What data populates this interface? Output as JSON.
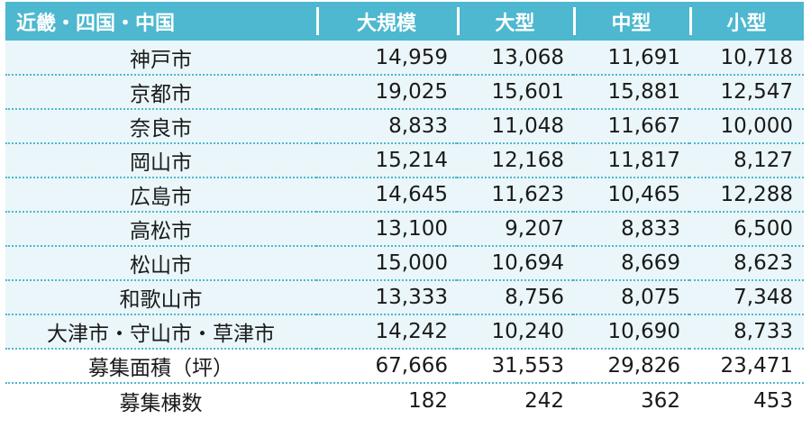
{
  "table": {
    "headers": [
      "近畿・四国・中国",
      "大規模",
      "大型",
      "中型",
      "小型"
    ],
    "rows": [
      {
        "name": "神戸市",
        "values": [
          "14,959",
          "13,068",
          "11,691",
          "10,718"
        ]
      },
      {
        "name": "京都市",
        "values": [
          "19,025",
          "15,601",
          "15,881",
          "12,547"
        ]
      },
      {
        "name": "奈良市",
        "values": [
          "8,833",
          "11,048",
          "11,667",
          "10,000"
        ]
      },
      {
        "name": "岡山市",
        "values": [
          "15,214",
          "12,168",
          "11,817",
          "8,127"
        ]
      },
      {
        "name": "広島市",
        "values": [
          "14,645",
          "11,623",
          "10,465",
          "12,288"
        ]
      },
      {
        "name": "高松市",
        "values": [
          "13,100",
          "9,207",
          "8,833",
          "6,500"
        ]
      },
      {
        "name": "松山市",
        "values": [
          "15,000",
          "10,694",
          "8,669",
          "8,623"
        ]
      },
      {
        "name": "和歌山市",
        "values": [
          "13,333",
          "8,756",
          "8,075",
          "7,348"
        ]
      },
      {
        "name": "大津市・守山市・草津市",
        "values": [
          "14,242",
          "10,240",
          "10,690",
          "8,733"
        ]
      },
      {
        "name": "募集面積（坪）",
        "values": [
          "67,666",
          "31,553",
          "29,826",
          "23,471"
        ]
      },
      {
        "name": "募集棟数",
        "values": [
          "182",
          "242",
          "362",
          "453"
        ]
      }
    ]
  },
  "colors": {
    "header_bg": "#4db8cf",
    "row_tint": "#eaf6f9",
    "separator": "#4db8cf"
  }
}
